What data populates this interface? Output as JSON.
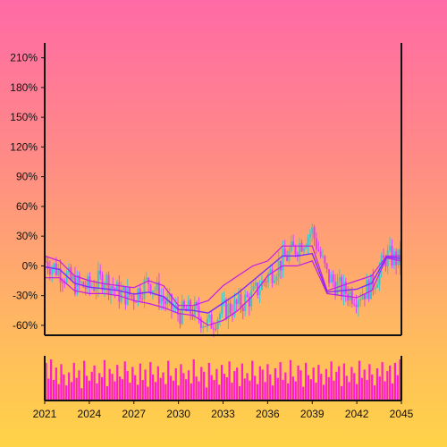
{
  "chart_data": {
    "type": "candlestick",
    "x_range": [
      2021,
      2045
    ],
    "x_ticks": [
      "2021",
      "2024",
      "2027",
      "2030",
      "2033",
      "2036",
      "2039",
      "2042",
      "2045"
    ],
    "y_range": [
      -70,
      225
    ],
    "y_ticks": [
      "-60%",
      "-30%",
      "0%",
      "30%",
      "60%",
      "90%",
      "120%",
      "150%",
      "180%",
      "210%"
    ],
    "y_tick_values": [
      -60,
      -30,
      0,
      30,
      60,
      90,
      120,
      150,
      180,
      210
    ],
    "grid": false,
    "legend": "none",
    "colors": {
      "up_candle": "#37c7c9",
      "down_candle": "#e040fb",
      "upper_band": "#c21de6",
      "lower_band": "#c21de6",
      "middle_line": "#7b2cff",
      "volume": "#ff1fc8",
      "axis": "#111111"
    },
    "series": [
      {
        "kind": "price_path",
        "x": [
          2021,
          2022,
          2023,
          2024,
          2025,
          2026,
          2027,
          2028,
          2029,
          2030,
          2031,
          2032,
          2033,
          2034,
          2035,
          2036,
          2037,
          2038,
          2039,
          2040,
          2041,
          2042,
          2043,
          2044,
          2045
        ],
        "close": [
          5,
          -5,
          -18,
          -22,
          -12,
          -28,
          -30,
          -15,
          -35,
          -48,
          -45,
          -60,
          -45,
          -40,
          -30,
          -10,
          5,
          20,
          35,
          -10,
          -25,
          -30,
          -20,
          10,
          5
        ]
      },
      {
        "kind": "upper_band",
        "x": [
          2021,
          2022,
          2023,
          2024,
          2025,
          2026,
          2027,
          2028,
          2029,
          2030,
          2031,
          2032,
          2033,
          2034,
          2035,
          2036,
          2037,
          2038,
          2039,
          2040,
          2041,
          2042,
          2043,
          2044,
          2045
        ],
        "value": [
          10,
          5,
          -10,
          -15,
          -18,
          -20,
          -22,
          -15,
          -20,
          -40,
          -40,
          -35,
          -20,
          -10,
          0,
          5,
          20,
          20,
          20,
          -25,
          -20,
          -15,
          -10,
          10,
          10
        ]
      },
      {
        "kind": "lower_band",
        "x": [
          2021,
          2022,
          2023,
          2024,
          2025,
          2026,
          2027,
          2028,
          2029,
          2030,
          2031,
          2032,
          2033,
          2034,
          2035,
          2036,
          2037,
          2038,
          2039,
          2040,
          2041,
          2042,
          2043,
          2044,
          2045
        ],
        "value": [
          -12,
          -12,
          -25,
          -28,
          -28,
          -30,
          -35,
          -38,
          -42,
          -48,
          -50,
          -60,
          -55,
          -45,
          -30,
          -10,
          0,
          0,
          5,
          -28,
          -30,
          -32,
          -25,
          8,
          5
        ]
      },
      {
        "kind": "volume",
        "x_range": [
          2021,
          2045
        ],
        "bars": 140,
        "values": [
          55,
          32,
          60,
          30,
          48,
          24,
          53,
          38,
          22,
          41,
          27,
          55,
          33,
          44,
          18,
          58,
          36,
          29,
          42,
          51,
          25,
          40,
          34,
          59,
          21,
          46,
          39,
          28,
          52,
          35,
          31,
          57,
          43,
          26,
          49,
          37,
          23,
          54,
          30,
          45,
          20,
          56,
          38,
          27,
          50,
          33,
          41,
          24,
          58,
          36,
          29,
          47,
          22,
          53,
          40,
          31,
          44,
          25,
          60,
          35,
          28,
          49,
          42,
          19,
          55,
          37,
          30,
          46,
          23,
          52,
          39,
          34,
          57,
          26,
          43,
          48,
          21,
          54,
          32,
          40,
          29,
          58,
          36,
          24,
          50,
          45,
          27,
          53,
          38,
          22,
          47,
          33,
          56,
          30,
          41,
          25,
          59,
          35,
          28,
          51,
          44,
          20,
          55,
          37,
          31,
          48,
          26,
          52,
          39,
          23,
          46,
          34,
          57,
          29,
          42,
          50,
          21,
          54,
          36,
          27,
          49,
          40,
          24,
          58,
          33,
          45,
          30,
          53,
          38,
          22,
          47,
          35,
          56,
          28,
          43,
          51,
          25,
          55,
          37,
          60
        ]
      }
    ]
  }
}
